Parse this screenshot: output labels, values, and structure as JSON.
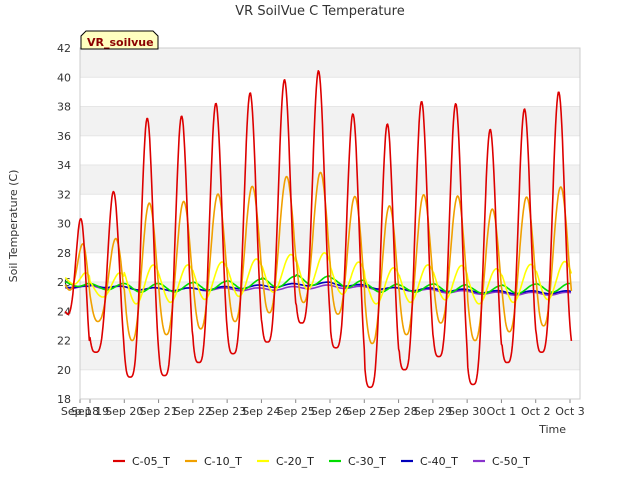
{
  "chart_data": {
    "type": "line",
    "title": "VR SoilVue C Temperature",
    "xlabel": "Time",
    "ylabel": "Soil Temperature (C)",
    "badge": "VR_soilvue",
    "ylim": [
      18,
      42
    ],
    "yticks": [
      18,
      20,
      22,
      24,
      26,
      28,
      30,
      32,
      34,
      36,
      38,
      40,
      42
    ],
    "xticks": [
      "Sep 18",
      "Sep 19",
      "Sep 20",
      "Sep 21",
      "Sep 22",
      "Sep 23",
      "Sep 24",
      "Sep 25",
      "Sep 26",
      "Sep 27",
      "Sep 28",
      "Sep 29",
      "Sep 30",
      "Oct 1",
      "Oct 2",
      "Oct 3"
    ],
    "x_start": "2023-09-18",
    "grid": true,
    "legend": "bottom",
    "daily_peaks": {
      "days": [
        "Sep 19",
        "Sep 20",
        "Sep 21",
        "Sep 22",
        "Sep 23",
        "Sep 24",
        "Sep 25",
        "Sep 26",
        "Sep 27",
        "Sep 28",
        "Sep 29",
        "Sep 30",
        "Oct 1",
        "Oct 2"
      ],
      "C-05_T_max": [
        31.1,
        37.2,
        37.2,
        38.1,
        38.8,
        39.6,
        41.0,
        37.7,
        36.5,
        38.3,
        38.6,
        36.2,
        37.6,
        39.0
      ],
      "C-05_T_min": [
        21.2,
        19.5,
        19.6,
        20.5,
        21.1,
        21.9,
        23.2,
        21.5,
        18.8,
        20.0,
        20.9,
        19.0,
        20.5,
        21.2
      ],
      "C-10_T_max": [
        28.2,
        31.4,
        31.4,
        31.9,
        32.4,
        33.0,
        33.9,
        32.1,
        31.0,
        31.9,
        32.2,
        30.8,
        31.6,
        32.5
      ],
      "C-10_T_min": [
        23.3,
        22.0,
        22.4,
        22.8,
        23.3,
        23.9,
        24.6,
        23.8,
        21.8,
        22.4,
        23.2,
        22.0,
        22.6,
        23.0
      ],
      "C-20_T_max": [
        26.3,
        27.2,
        27.1,
        27.3,
        27.5,
        27.7,
        28.2,
        27.6,
        26.9,
        27.1,
        27.3,
        26.8,
        27.1,
        27.4
      ],
      "C-20_T_min": [
        25.0,
        24.5,
        24.6,
        24.8,
        25.0,
        25.3,
        25.5,
        25.2,
        24.5,
        24.6,
        24.8,
        24.5,
        24.6,
        24.8
      ],
      "C-30_T_max": [
        25.9,
        25.9,
        25.9,
        26.0,
        26.1,
        26.3,
        26.5,
        26.3,
        25.9,
        25.8,
        25.9,
        25.7,
        25.8,
        25.9
      ],
      "C-30_T_min": [
        25.5,
        25.3,
        25.3,
        25.4,
        25.5,
        25.6,
        25.8,
        25.7,
        25.3,
        25.3,
        25.3,
        25.2,
        25.2,
        25.3
      ],
      "C-40_T": [
        25.8,
        25.6,
        25.5,
        25.5,
        25.6,
        25.7,
        25.8,
        25.9,
        25.7,
        25.5,
        25.5,
        25.4,
        25.3,
        25.3
      ],
      "C-50_T": [
        25.7,
        25.6,
        25.5,
        25.5,
        25.5,
        25.5,
        25.6,
        25.7,
        25.6,
        25.5,
        25.4,
        25.3,
        25.2,
        25.2
      ]
    },
    "series": [
      {
        "name": "C-05_T",
        "color": "#dd0000"
      },
      {
        "name": "C-10_T",
        "color": "#f0a000"
      },
      {
        "name": "C-20_T",
        "color": "#ffff00"
      },
      {
        "name": "C-30_T",
        "color": "#00dd00"
      },
      {
        "name": "C-40_T",
        "color": "#0000bb"
      },
      {
        "name": "C-50_T",
        "color": "#8833cc"
      }
    ]
  }
}
